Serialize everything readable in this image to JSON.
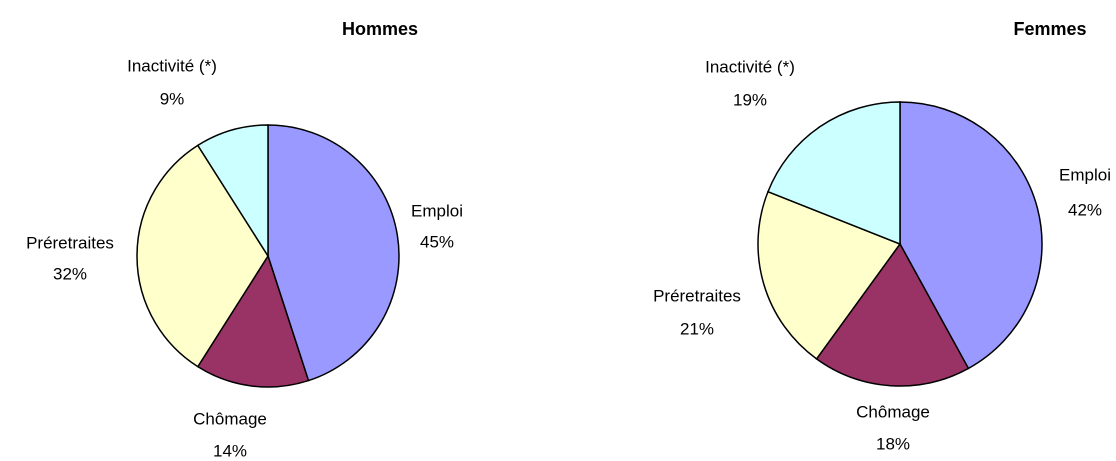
{
  "chart_data": [
    {
      "type": "pie",
      "title": "Hommes",
      "categories": [
        "Emploi",
        "Chômage",
        "Préretraites",
        "Inactivité (*)"
      ],
      "values": [
        45,
        14,
        32,
        9
      ],
      "value_labels": [
        "45%",
        "14%",
        "32%",
        "9%"
      ],
      "colors": [
        "#9999ff",
        "#993366",
        "#ffffcc",
        "#ccffff"
      ]
    },
    {
      "type": "pie",
      "title": "Femmes",
      "categories": [
        "Emploi",
        "Chômage",
        "Préretraites",
        "Inactivité (*)"
      ],
      "values": [
        42,
        18,
        21,
        19
      ],
      "value_labels": [
        "42%",
        "18%",
        "21%",
        "19%"
      ],
      "colors": [
        "#9999ff",
        "#993366",
        "#ffffcc",
        "#ccffff"
      ]
    }
  ]
}
